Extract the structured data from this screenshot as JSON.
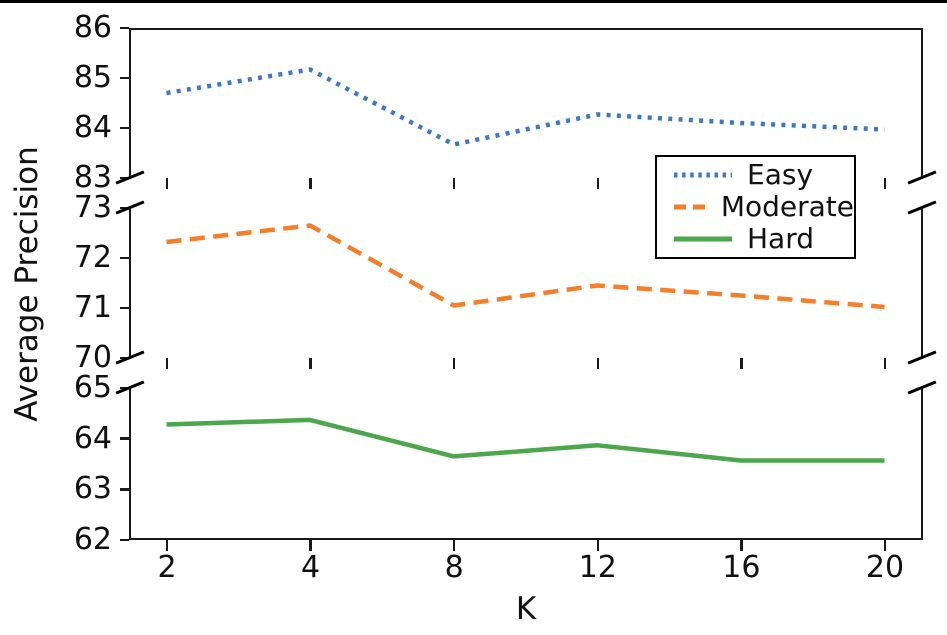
{
  "chart_data": {
    "type": "line",
    "title": "",
    "xlabel": "K",
    "ylabel": "Average Precision",
    "x": [
      2,
      4,
      8,
      12,
      16,
      20
    ],
    "x_tick_labels": [
      "2",
      "4",
      "8",
      "12",
      "16",
      "20"
    ],
    "broken_y_axis": true,
    "grid": false,
    "segments": [
      {
        "ylim": [
          83,
          86
        ],
        "yticks": [
          86,
          85,
          84,
          83
        ]
      },
      {
        "ylim": [
          70,
          73
        ],
        "yticks": [
          73,
          72,
          71,
          70
        ]
      },
      {
        "ylim": [
          62,
          65
        ],
        "yticks": [
          65,
          64,
          63,
          62
        ]
      }
    ],
    "series": [
      {
        "name": "Easy",
        "color": "#3d78c6",
        "style": "dotted",
        "segment": 0,
        "values": [
          84.7,
          85.17,
          83.67,
          84.27,
          84.1,
          83.97
        ]
      },
      {
        "name": "Moderate",
        "color": "#f57e2a",
        "style": "dashed",
        "segment": 1,
        "values": [
          72.32,
          72.65,
          71.05,
          71.45,
          71.25,
          71.02
        ]
      },
      {
        "name": "Hard",
        "color": "#4ca64c",
        "style": "solid",
        "segment": 2,
        "values": [
          64.28,
          64.37,
          63.65,
          63.87,
          63.57,
          63.57
        ]
      }
    ],
    "legend": {
      "entries": [
        "Easy",
        "Moderate",
        "Hard"
      ],
      "position": "center right"
    }
  }
}
